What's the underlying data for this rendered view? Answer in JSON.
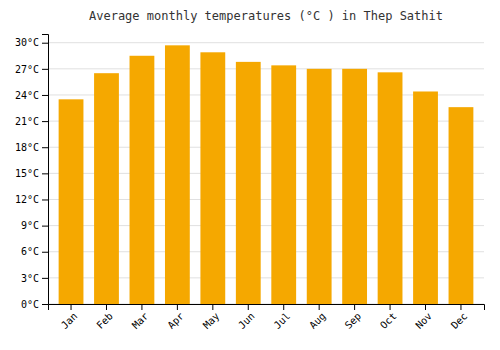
{
  "chart_data": {
    "type": "bar",
    "title": "Average monthly temperatures (°C ) in Thep Sathit",
    "categories": [
      "Jan",
      "Feb",
      "Mar",
      "Apr",
      "May",
      "Jun",
      "Jul",
      "Aug",
      "Sep",
      "Oct",
      "Nov",
      "Dec"
    ],
    "values": [
      23.5,
      26.5,
      28.5,
      29.7,
      28.9,
      27.8,
      27.4,
      27.0,
      27.0,
      26.6,
      24.4,
      22.6
    ],
    "color": "#F5A800",
    "ylim": [
      0,
      31
    ],
    "yticks": [
      {
        "value": 0,
        "label": "0°C"
      },
      {
        "value": 3,
        "label": "3°C"
      },
      {
        "value": 6,
        "label": "6°C"
      },
      {
        "value": 9,
        "label": "9°C"
      },
      {
        "value": 12,
        "label": "12°C"
      },
      {
        "value": 15,
        "label": "15°C"
      },
      {
        "value": 18,
        "label": "18°C"
      },
      {
        "value": 21,
        "label": "21°C"
      },
      {
        "value": 24,
        "label": "24°C"
      },
      {
        "value": 27,
        "label": "27°C"
      },
      {
        "value": 30,
        "label": "30°C"
      }
    ],
    "grid": true
  }
}
